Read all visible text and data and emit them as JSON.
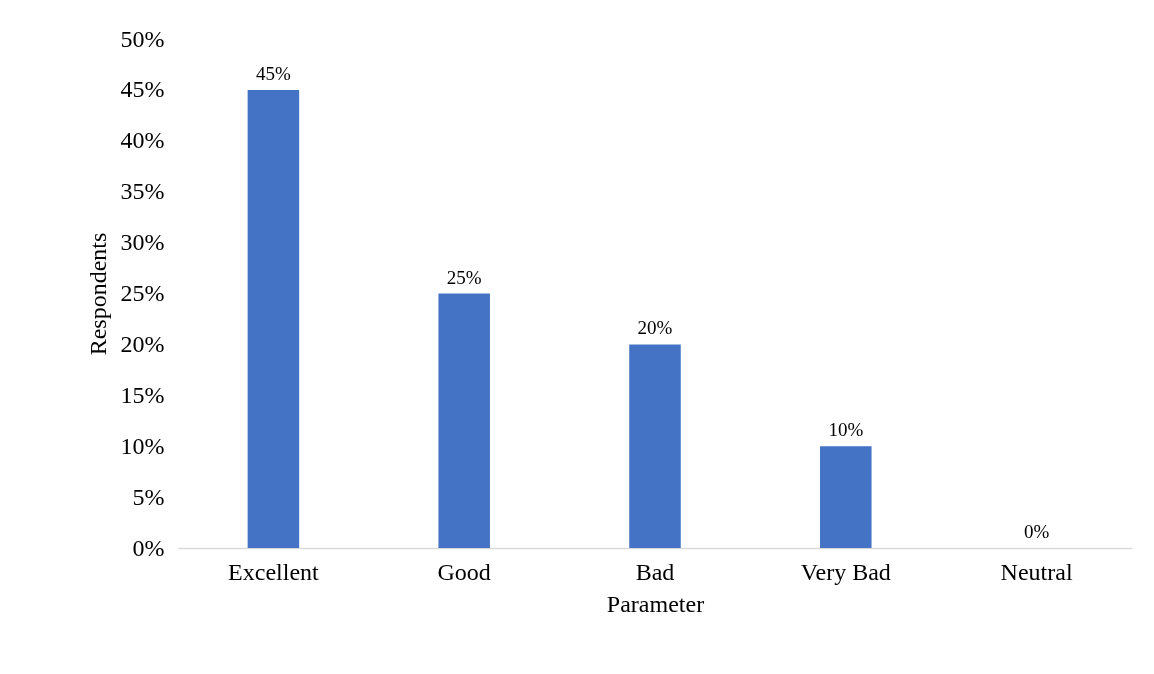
{
  "chart_data": {
    "type": "bar",
    "xlabel": "Parameter",
    "ylabel": "Respondents",
    "categories": [
      "Excellent",
      "Good",
      "Bad",
      "Very Bad",
      "Neutral"
    ],
    "values": [
      45,
      25,
      20,
      10,
      0
    ],
    "value_labels": [
      "45%",
      "25%",
      "20%",
      "10%",
      "0%"
    ],
    "color": "#4472c4",
    "ylim": [
      0,
      50
    ],
    "yticks": [
      {
        "value": 0,
        "label": "0%"
      },
      {
        "value": 5,
        "label": "5%"
      },
      {
        "value": 10,
        "label": "10%"
      },
      {
        "value": 15,
        "label": "15%"
      },
      {
        "value": 20,
        "label": "20%"
      },
      {
        "value": 25,
        "label": "25%"
      },
      {
        "value": 30,
        "label": "30%"
      },
      {
        "value": 35,
        "label": "35%"
      },
      {
        "value": 40,
        "label": "40%"
      },
      {
        "value": 45,
        "label": "45%"
      },
      {
        "value": 50,
        "label": "50%"
      }
    ],
    "grid": false
  }
}
